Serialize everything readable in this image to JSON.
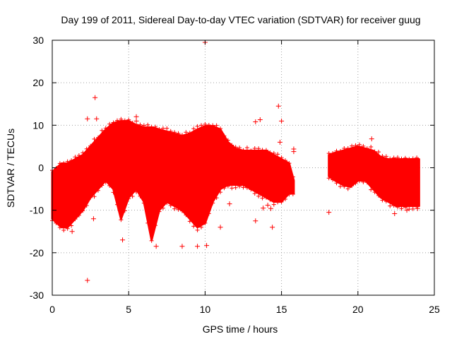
{
  "chart_data": {
    "type": "scatter",
    "title": "Day 199 of 2011, Sidereal Day-to-day VTEC variation (SDTVAR) for receiver guug",
    "xlabel": "GPS time / hours",
    "ylabel": "SDTVAR / TECUs",
    "xlim": [
      0,
      25
    ],
    "ylim": [
      -30,
      30
    ],
    "xticks": [
      0,
      5,
      10,
      15,
      20,
      25
    ],
    "yticks": [
      -30,
      -20,
      -10,
      0,
      10,
      20,
      30
    ],
    "grid": true,
    "marker": "+",
    "color": "#ff0000",
    "series": [
      {
        "name": "SDTVAR",
        "envelope_upper": [
          [
            0.0,
            -1
          ],
          [
            0.3,
            0
          ],
          [
            0.6,
            1
          ],
          [
            1.0,
            1
          ],
          [
            1.5,
            2
          ],
          [
            2.0,
            3
          ],
          [
            2.5,
            5
          ],
          [
            3.0,
            7
          ],
          [
            3.5,
            9
          ],
          [
            4.0,
            10.5
          ],
          [
            4.5,
            11
          ],
          [
            5.0,
            11
          ],
          [
            5.5,
            10
          ],
          [
            6.0,
            9.5
          ],
          [
            6.5,
            9.5
          ],
          [
            7.0,
            9
          ],
          [
            7.5,
            8.5
          ],
          [
            8.0,
            8
          ],
          [
            8.5,
            7.5
          ],
          [
            9.0,
            8
          ],
          [
            9.5,
            9
          ],
          [
            10.0,
            9.8
          ],
          [
            10.5,
            9.8
          ],
          [
            11.0,
            9
          ],
          [
            11.5,
            6
          ],
          [
            12.0,
            4.5
          ],
          [
            12.5,
            4
          ],
          [
            13.0,
            4
          ],
          [
            13.5,
            4
          ],
          [
            14.0,
            4
          ],
          [
            14.5,
            3
          ],
          [
            15.0,
            2
          ],
          [
            15.5,
            1
          ],
          [
            15.8,
            -3
          ]
        ],
        "envelope_lower": [
          [
            0.0,
            -12
          ],
          [
            0.3,
            -13
          ],
          [
            0.6,
            -14
          ],
          [
            1.0,
            -14
          ],
          [
            1.5,
            -12
          ],
          [
            2.0,
            -10
          ],
          [
            2.5,
            -7
          ],
          [
            3.0,
            -5
          ],
          [
            3.5,
            -3
          ],
          [
            4.0,
            -5
          ],
          [
            4.5,
            -12
          ],
          [
            5.0,
            -7
          ],
          [
            5.5,
            -5
          ],
          [
            6.0,
            -8
          ],
          [
            6.5,
            -17
          ],
          [
            7.0,
            -10
          ],
          [
            7.5,
            -8
          ],
          [
            8.0,
            -9
          ],
          [
            8.5,
            -10
          ],
          [
            9.0,
            -12
          ],
          [
            9.5,
            -14
          ],
          [
            10.0,
            -13
          ],
          [
            10.5,
            -8
          ],
          [
            11.0,
            -5
          ],
          [
            11.5,
            -4
          ],
          [
            12.0,
            -4
          ],
          [
            12.5,
            -4
          ],
          [
            13.0,
            -5
          ],
          [
            13.5,
            -6
          ],
          [
            14.0,
            -7
          ],
          [
            14.5,
            -8
          ],
          [
            15.0,
            -8
          ],
          [
            15.5,
            -6
          ],
          [
            15.8,
            -6
          ]
        ],
        "envelope2_upper": [
          [
            18.1,
            3
          ],
          [
            18.5,
            3.5
          ],
          [
            19.0,
            4
          ],
          [
            19.5,
            4.5
          ],
          [
            20.0,
            5
          ],
          [
            20.5,
            4.5
          ],
          [
            21.0,
            4
          ],
          [
            21.5,
            2.5
          ],
          [
            22.0,
            2
          ],
          [
            22.5,
            2
          ],
          [
            23.0,
            2
          ],
          [
            23.5,
            2
          ],
          [
            24.0,
            2
          ]
        ],
        "envelope2_lower": [
          [
            18.1,
            -2
          ],
          [
            18.5,
            -3
          ],
          [
            19.0,
            -4
          ],
          [
            19.5,
            -4.5
          ],
          [
            20.0,
            -3
          ],
          [
            20.5,
            -3
          ],
          [
            21.0,
            -5
          ],
          [
            21.5,
            -7
          ],
          [
            22.0,
            -8
          ],
          [
            22.5,
            -9
          ],
          [
            23.0,
            -9
          ],
          [
            23.5,
            -9
          ],
          [
            24.0,
            -9
          ]
        ],
        "outliers": [
          [
            10.0,
            29.5
          ],
          [
            2.8,
            16.5
          ],
          [
            2.3,
            11.5
          ],
          [
            2.9,
            11.5
          ],
          [
            14.8,
            14.5
          ],
          [
            13.3,
            10.8
          ],
          [
            13.6,
            11.3
          ],
          [
            5.5,
            12.0
          ],
          [
            5.5,
            11.0
          ],
          [
            14.9,
            6.0
          ],
          [
            15.8,
            3.8
          ],
          [
            15.8,
            4.4
          ],
          [
            20.9,
            6.8
          ],
          [
            2.3,
            -26.5
          ],
          [
            8.5,
            -18.5
          ],
          [
            9.5,
            -18.5
          ],
          [
            10.1,
            -18.3
          ],
          [
            11.0,
            -14.0
          ],
          [
            14.4,
            -14.0
          ],
          [
            13.3,
            -12.5
          ],
          [
            13.8,
            -9.5
          ],
          [
            14.1,
            -8.8
          ],
          [
            14.3,
            -9.6
          ],
          [
            18.1,
            -10.5
          ],
          [
            22.4,
            -10.8
          ],
          [
            23.2,
            -10.0
          ],
          [
            2.7,
            -12.0
          ],
          [
            1.3,
            -15.0
          ],
          [
            4.6,
            -17.0
          ],
          [
            11.6,
            -8.5
          ],
          [
            0.1,
            -10.5
          ],
          [
            6.8,
            -18.5
          ],
          [
            15.0,
            11.0
          ],
          [
            23.8,
            1.5
          ],
          [
            23.9,
            -9.6
          ]
        ]
      }
    ]
  }
}
